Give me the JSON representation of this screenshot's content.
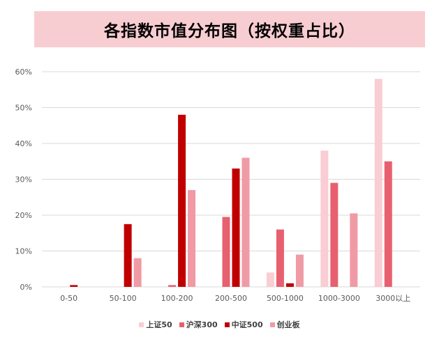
{
  "chart_data": {
    "type": "bar",
    "title": "各指数市值分布图（按权重占比）",
    "categories": [
      "0-50",
      "50-100",
      "100-200",
      "200-500",
      "500-1000",
      "1000-3000",
      "3000以上"
    ],
    "ylim": [
      0,
      60
    ],
    "yticks": [
      "0%",
      "10%",
      "20%",
      "30%",
      "40%",
      "50%",
      "60%"
    ],
    "grid": true,
    "legend_position": "bottom",
    "series": [
      {
        "name": "上证50",
        "color": "#f9cdd3",
        "values": [
          0,
          0,
          0,
          0,
          4,
          38,
          58
        ]
      },
      {
        "name": "沪深300",
        "color": "#e8606f",
        "values": [
          0,
          0,
          0.5,
          19.5,
          16,
          29,
          35
        ]
      },
      {
        "name": "中证500",
        "color": "#c00000",
        "values": [
          0.5,
          17.5,
          48,
          33,
          1,
          0,
          0
        ]
      },
      {
        "name": "创业板",
        "color": "#f09aa6",
        "values": [
          0,
          8,
          27,
          36,
          9,
          20.5,
          0
        ]
      }
    ]
  }
}
